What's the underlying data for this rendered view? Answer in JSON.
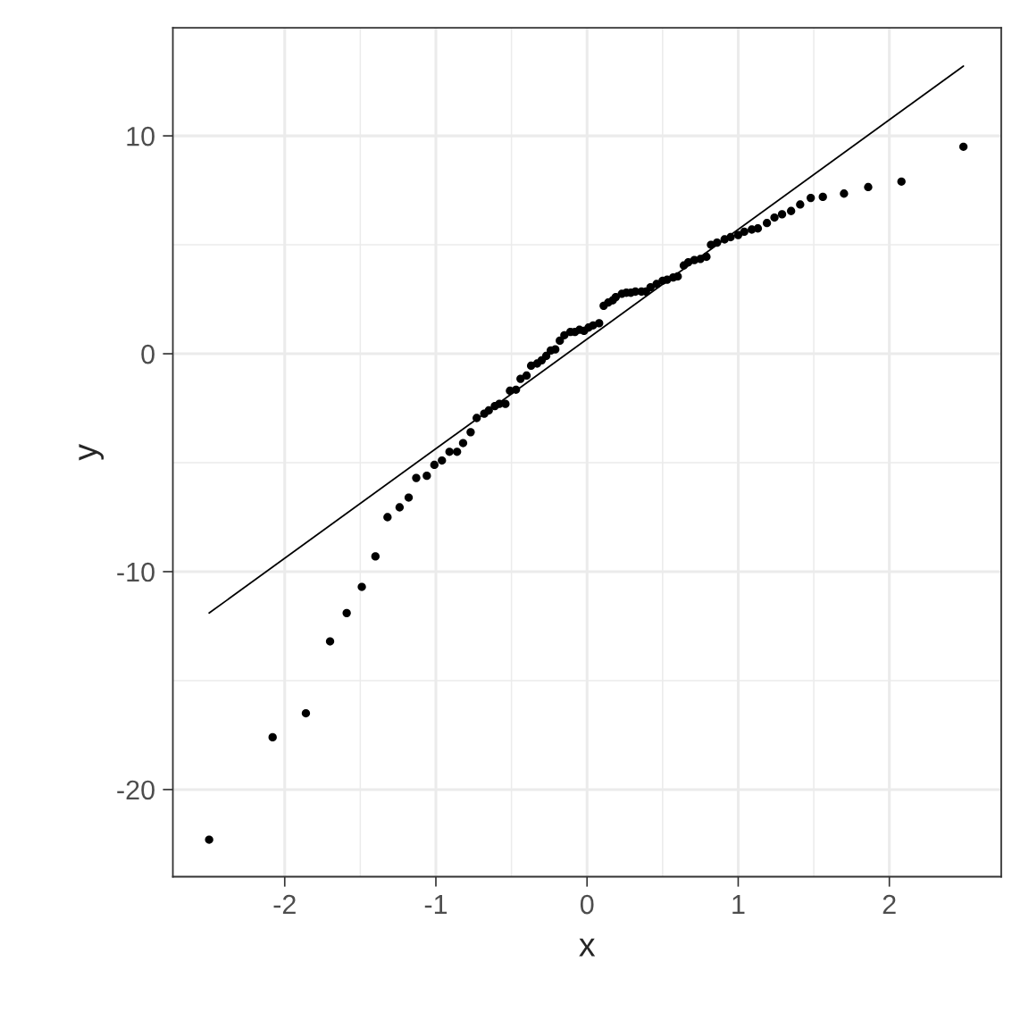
{
  "chart_data": {
    "type": "scatter",
    "xlabel": "x",
    "ylabel": "y",
    "xlim": [
      -2.74,
      2.74
    ],
    "ylim": [
      -24.0,
      14.96
    ],
    "xticks": [
      -2,
      -1,
      0,
      1,
      2
    ],
    "yticks": [
      -20,
      -10,
      0,
      10
    ],
    "grid": true,
    "series": [
      {
        "color": "#000000",
        "marker": "circle",
        "x": [
          -2.5,
          -2.08,
          -1.86,
          -1.7,
          -1.59,
          -1.49,
          -1.4,
          -1.32,
          -1.24,
          -1.18,
          -1.13,
          -1.06,
          -1.01,
          -0.96,
          -0.91,
          -0.86,
          -0.82,
          -0.77,
          -0.73,
          -0.68,
          -0.65,
          -0.61,
          -0.58,
          -0.54,
          -0.51,
          -0.47,
          -0.44,
          -0.4,
          -0.37,
          -0.33,
          -0.3,
          -0.27,
          -0.24,
          -0.21,
          -0.18,
          -0.15,
          -0.11,
          -0.08,
          -0.05,
          -0.02,
          0.01,
          0.04,
          0.08,
          0.11,
          0.14,
          0.17,
          0.19,
          0.23,
          0.26,
          0.29,
          0.32,
          0.36,
          0.39,
          0.42,
          0.46,
          0.5,
          0.53,
          0.57,
          0.6,
          0.64,
          0.67,
          0.71,
          0.75,
          0.79,
          0.82,
          0.86,
          0.91,
          0.95,
          1.0,
          1.04,
          1.09,
          1.13,
          1.19,
          1.24,
          1.29,
          1.35,
          1.41,
          1.48,
          1.56,
          1.7,
          1.86,
          2.08,
          2.49
        ],
        "values": [
          -22.3,
          -17.6,
          -16.5,
          -13.2,
          -11.9,
          -10.7,
          -9.3,
          -7.5,
          -7.05,
          -6.6,
          -5.7,
          -5.6,
          -5.1,
          -4.9,
          -4.5,
          -4.5,
          -4.1,
          -3.6,
          -2.95,
          -2.75,
          -2.6,
          -2.4,
          -2.3,
          -2.3,
          -1.7,
          -1.65,
          -1.15,
          -1.0,
          -0.55,
          -0.45,
          -0.3,
          -0.1,
          0.15,
          0.2,
          0.6,
          0.85,
          1.0,
          1.0,
          1.1,
          1.05,
          1.2,
          1.3,
          1.4,
          2.2,
          2.35,
          2.45,
          2.6,
          2.75,
          2.8,
          2.8,
          2.85,
          2.85,
          2.85,
          3.05,
          3.2,
          3.35,
          3.4,
          3.5,
          3.55,
          4.05,
          4.2,
          4.3,
          4.35,
          4.45,
          5.0,
          5.1,
          5.25,
          5.35,
          5.45,
          5.6,
          5.7,
          5.75,
          6.0,
          6.25,
          6.4,
          6.55,
          6.85,
          7.15,
          7.2,
          7.35,
          7.65,
          7.9,
          9.5
        ]
      },
      {
        "type": "line",
        "color": "#000000",
        "marker": "none",
        "x": [
          -2.5,
          2.49
        ],
        "values": [
          -11.9,
          13.2
        ]
      }
    ]
  }
}
